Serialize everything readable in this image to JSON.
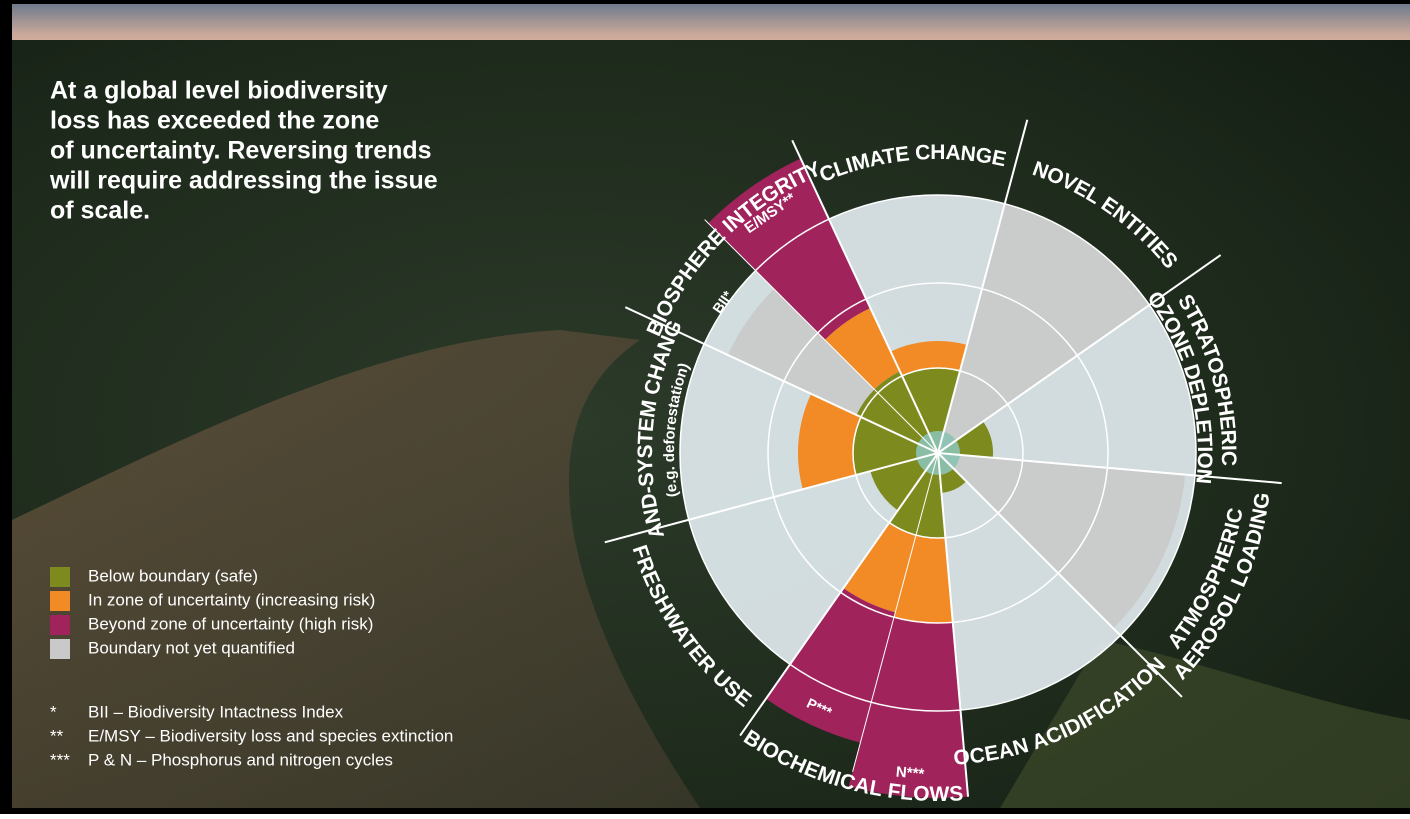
{
  "headline": [
    "At a global level biodiversity",
    "loss has exceeded the zone",
    "of uncertainty. Reversing trends",
    "will require addressing the issue",
    "of scale."
  ],
  "sectors": [
    {
      "lines": [
        "CLIMATE CHANGE"
      ]
    },
    {
      "lines": [
        "NOVEL ENTITIES"
      ]
    },
    {
      "lines": [
        "STRATOSPHERIC",
        "OZONE DEPLETION"
      ]
    },
    {
      "lines": [
        "ATMOSPHERIC",
        "AEROSOL LOADING"
      ]
    },
    {
      "lines": [
        "OCEAN ACIDIFICATION"
      ]
    },
    {
      "lines": [
        "BIOCHEMICAL FLOWS"
      ]
    },
    {
      "lines": [
        "FRESHWATER USE"
      ]
    },
    {
      "lines": [
        "LAND-SYSTEM CHANGE",
        "(e.g. deforestation)"
      ]
    },
    {
      "lines": [
        "BIOSPHERE INTEGRITY"
      ]
    }
  ],
  "sub_labels": {
    "bii": "BII*",
    "emsy": "E/MSY**",
    "p": "P***",
    "n": "N***"
  },
  "legend": [
    {
      "label": "Below boundary (safe)",
      "color": "#7d8b1e"
    },
    {
      "label": "In zone of uncertainty (increasing risk)",
      "color": "#f28a25"
    },
    {
      "label": "Beyond zone of uncertainty (high risk)",
      "color": "#a0235c"
    },
    {
      "label": "Boundary not yet quantified",
      "color": "#c9c9c9"
    }
  ],
  "footnotes": [
    {
      "symbol": "*",
      "text": "BII – Biodiversity Intactness Index"
    },
    {
      "symbol": "**",
      "text": "E/MSY – Biodiversity loss and species extinction"
    },
    {
      "symbol": "***",
      "text": "P & N – Phosphorus and nitrogen cycles"
    }
  ]
}
